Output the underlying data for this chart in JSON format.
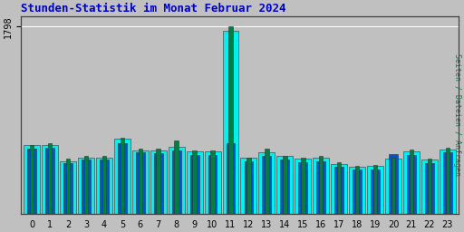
{
  "title": "Stunden-Statistik im Monat Februar 2024",
  "ylabel_right": "Seiten / Dateien / Anfragen",
  "hours": [
    0,
    1,
    2,
    3,
    4,
    5,
    6,
    7,
    8,
    9,
    10,
    11,
    12,
    13,
    14,
    15,
    16,
    17,
    18,
    19,
    20,
    21,
    22,
    23
  ],
  "anfragen": [
    660,
    665,
    510,
    540,
    545,
    720,
    615,
    615,
    645,
    600,
    600,
    1760,
    540,
    595,
    555,
    530,
    545,
    480,
    455,
    460,
    535,
    605,
    520,
    620
  ],
  "dateien": [
    630,
    640,
    490,
    520,
    525,
    680,
    590,
    585,
    615,
    570,
    570,
    680,
    505,
    560,
    520,
    495,
    510,
    450,
    425,
    430,
    580,
    565,
    490,
    590
  ],
  "seiten": [
    660,
    680,
    530,
    560,
    560,
    730,
    630,
    630,
    705,
    610,
    610,
    1798,
    545,
    630,
    560,
    540,
    560,
    495,
    465,
    470,
    545,
    620,
    535,
    635
  ],
  "color_seiten": "#008040",
  "color_dateien": "#0055cc",
  "color_anfragen": "#00efef",
  "background_plot": "#c0c0c0",
  "background_fig": "#c0c0c0",
  "ymax": 1900,
  "ytick": 1798,
  "title_color": "#0000cc",
  "ylabel_right_color": "#008040",
  "bar_width": 0.9,
  "edge_color": "#333333",
  "title_fontsize": 9,
  "tick_fontsize": 7
}
